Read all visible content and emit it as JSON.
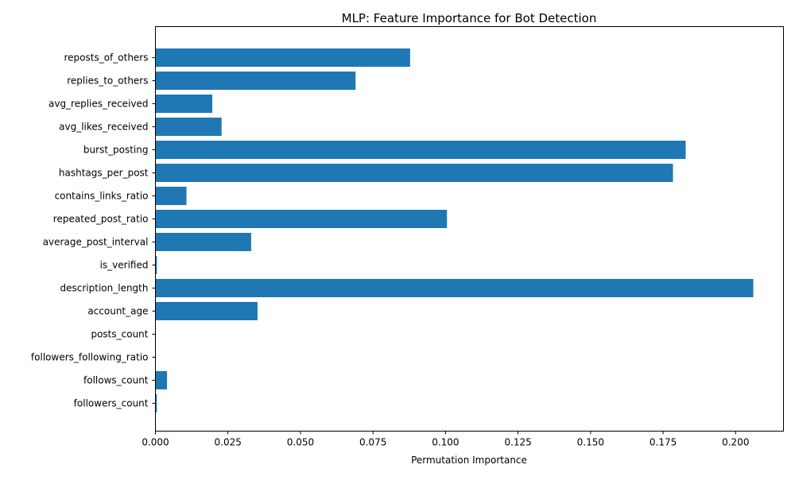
{
  "chart_data": {
    "type": "bar",
    "orientation": "horizontal",
    "title": "MLP: Feature Importance for Bot Detection",
    "xlabel": "Permutation Importance",
    "ylabel": "",
    "xlim": [
      0,
      0.2165
    ],
    "xticks": [
      0.0,
      0.025,
      0.05,
      0.075,
      0.1,
      0.125,
      0.15,
      0.175,
      0.2
    ],
    "xtick_labels": [
      "0.000",
      "0.025",
      "0.050",
      "0.075",
      "0.100",
      "0.125",
      "0.150",
      "0.175",
      "0.200"
    ],
    "grid": false,
    "legend": "none",
    "bar_color": "#1f77b4",
    "categories": [
      "followers_count",
      "follows_count",
      "followers_following_ratio",
      "posts_count",
      "account_age",
      "description_length",
      "is_verified",
      "average_post_interval",
      "repeated_post_ratio",
      "contains_links_ratio",
      "hashtags_per_post",
      "burst_posting",
      "avg_likes_received",
      "avg_replies_received",
      "replies_to_others",
      "reposts_of_others"
    ],
    "values": [
      0.0005,
      0.004,
      0.0,
      0.0,
      0.0352,
      0.2061,
      0.0005,
      0.033,
      0.1005,
      0.0107,
      0.1784,
      0.1828,
      0.0228,
      0.0196,
      0.069,
      0.0878
    ]
  }
}
